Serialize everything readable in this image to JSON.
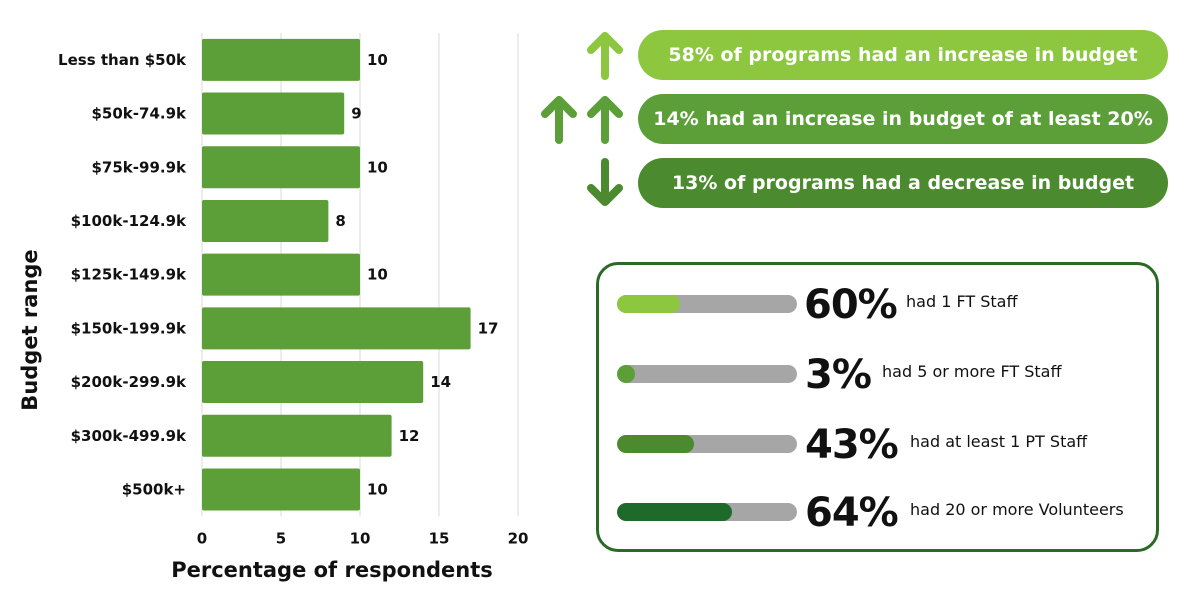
{
  "chart_data": {
    "type": "bar",
    "orientation": "horizontal",
    "title": "",
    "categories": [
      "Less than $50k",
      "$50k-74.9k",
      "$75k-99.9k",
      "$100k-124.9k",
      "$125k-149.9k",
      "$150k-199.9k",
      "$200k-299.9k",
      "$300k-499.9k",
      "$500k+"
    ],
    "values": [
      10,
      9,
      10,
      8,
      10,
      17,
      14,
      12,
      10
    ],
    "xlabel": "Percentage of respondents",
    "ylabel": "Budget range",
    "xlim": [
      0,
      20
    ],
    "xticks": [
      0,
      5,
      10,
      15,
      20
    ],
    "grid": true,
    "legend": "none",
    "bar_color": "#5c9f38",
    "data_labels": true
  },
  "budget_changes": [
    {
      "text": "58% of programs had an increase in budget",
      "percent": 58,
      "arrow": "up",
      "arrow_count": 1,
      "color": "#8dc63f"
    },
    {
      "text": "14% had an increase in budget of at least 20%",
      "percent": 14,
      "arrow": "up",
      "arrow_count": 2,
      "color": "#5c9f38"
    },
    {
      "text": "13% of programs had a decrease in budget",
      "percent": 13,
      "arrow": "down",
      "arrow_count": 1,
      "color": "#4b8a2e"
    }
  ],
  "staffing": {
    "border_color": "#2b6a26",
    "track_color": "#a6a6a6",
    "items": [
      {
        "percent_label": "60%",
        "percent": 60,
        "description": "had 1 FT Staff",
        "color": "#8dc63f"
      },
      {
        "percent_label": "3%",
        "percent": 3,
        "description": "had 5 or more FT Staff",
        "color": "#5c9f38"
      },
      {
        "percent_label": "43%",
        "percent": 43,
        "description": "had at least 1 PT Staff",
        "color": "#4b8a2e"
      },
      {
        "percent_label": "64%",
        "percent": 64,
        "description": "had 20 or more Volunteers",
        "color": "#1e6a2a"
      }
    ]
  }
}
